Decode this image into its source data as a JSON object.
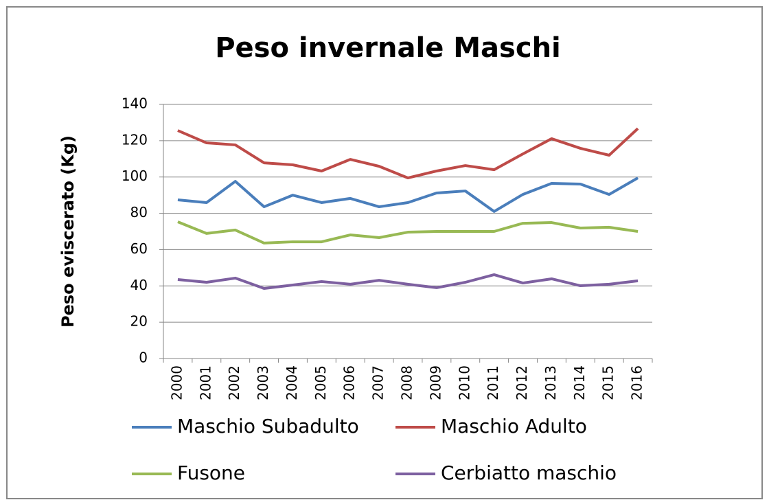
{
  "chart_data": {
    "type": "line",
    "title": "Peso invernale Maschi",
    "y_label": "Peso eviscerato (Kg)",
    "categories": [
      "2000",
      "2001",
      "2002",
      "2003",
      "2004",
      "2005",
      "2006",
      "2007",
      "2008",
      "2009",
      "2010",
      "2011",
      "2012",
      "2013",
      "2014",
      "2015",
      "2016"
    ],
    "series": [
      {
        "name": "Maschio Subadulto",
        "color": "#4a7ebb",
        "values": [
          87.4,
          85.9,
          97.6,
          83.6,
          90.0,
          85.9,
          88.2,
          83.6,
          85.9,
          91.2,
          92.3,
          81.0,
          90.4,
          96.5,
          96.1,
          90.4,
          99.5
        ]
      },
      {
        "name": "Maschio Adulto",
        "color": "#be4b48",
        "values": [
          125.6,
          118.8,
          117.7,
          107.8,
          106.7,
          103.3,
          109.7,
          105.9,
          99.5,
          103.3,
          106.3,
          104.0,
          112.7,
          121.1,
          115.8,
          112.0,
          126.7
        ]
      },
      {
        "name": "Fusone",
        "color": "#98b954",
        "values": [
          75.3,
          68.9,
          70.8,
          63.6,
          64.3,
          64.3,
          68.1,
          66.6,
          69.6,
          70.0,
          70.0,
          70.0,
          74.5,
          74.9,
          71.9,
          72.3,
          70.0
        ]
      },
      {
        "name": "Cerbiatto maschio",
        "color": "#7d60a0",
        "values": [
          43.5,
          42.0,
          44.3,
          38.6,
          40.5,
          42.4,
          40.9,
          43.1,
          40.9,
          39.0,
          42.0,
          46.2,
          41.6,
          43.9,
          40.1,
          40.9,
          42.8
        ]
      }
    ],
    "ylim": [
      0,
      140
    ],
    "yticks": [
      0,
      20,
      40,
      60,
      80,
      100,
      120,
      140
    ],
    "grid": true,
    "legend": "bottom"
  }
}
